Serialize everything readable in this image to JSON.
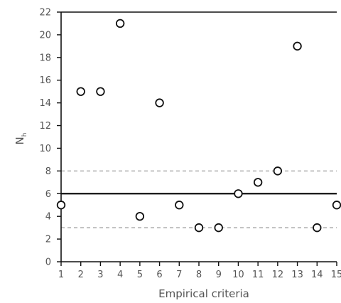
{
  "chart_data": {
    "type": "scatter",
    "title": "",
    "xlabel": "Empirical criteria",
    "ylabel_main": "N",
    "ylabel_sub": "h",
    "xlim": [
      1,
      15
    ],
    "ylim": [
      0,
      22
    ],
    "xticks": [
      "1",
      "2",
      "3",
      "4",
      "5",
      "6",
      "7",
      "8",
      "9",
      "10",
      "11",
      "12",
      "13",
      "14",
      "15"
    ],
    "yticks": [
      "0",
      "2",
      "4",
      "6",
      "8",
      "10",
      "12",
      "14",
      "16",
      "18",
      "20",
      "22"
    ],
    "grid": false,
    "points": [
      {
        "x": 1,
        "y": 5
      },
      {
        "x": 2,
        "y": 15
      },
      {
        "x": 3,
        "y": 15
      },
      {
        "x": 4,
        "y": 21
      },
      {
        "x": 5,
        "y": 4
      },
      {
        "x": 6,
        "y": 14
      },
      {
        "x": 7,
        "y": 5
      },
      {
        "x": 8,
        "y": 3
      },
      {
        "x": 9,
        "y": 3
      },
      {
        "x": 10,
        "y": 6
      },
      {
        "x": 11,
        "y": 7
      },
      {
        "x": 12,
        "y": 8
      },
      {
        "x": 13,
        "y": 19
      },
      {
        "x": 14,
        "y": 3
      },
      {
        "x": 15,
        "y": 5
      }
    ],
    "reference_lines": [
      {
        "y": 6,
        "style": "solid"
      },
      {
        "y": 8,
        "style": "dashed"
      },
      {
        "y": 3,
        "style": "dashed"
      }
    ],
    "colors": {
      "axis": "#111111",
      "marker_edge": "#111111",
      "marker_fill": "#ffffff",
      "solid_line": "#111111",
      "dashed_line": "#999999",
      "text": "#555555"
    }
  }
}
